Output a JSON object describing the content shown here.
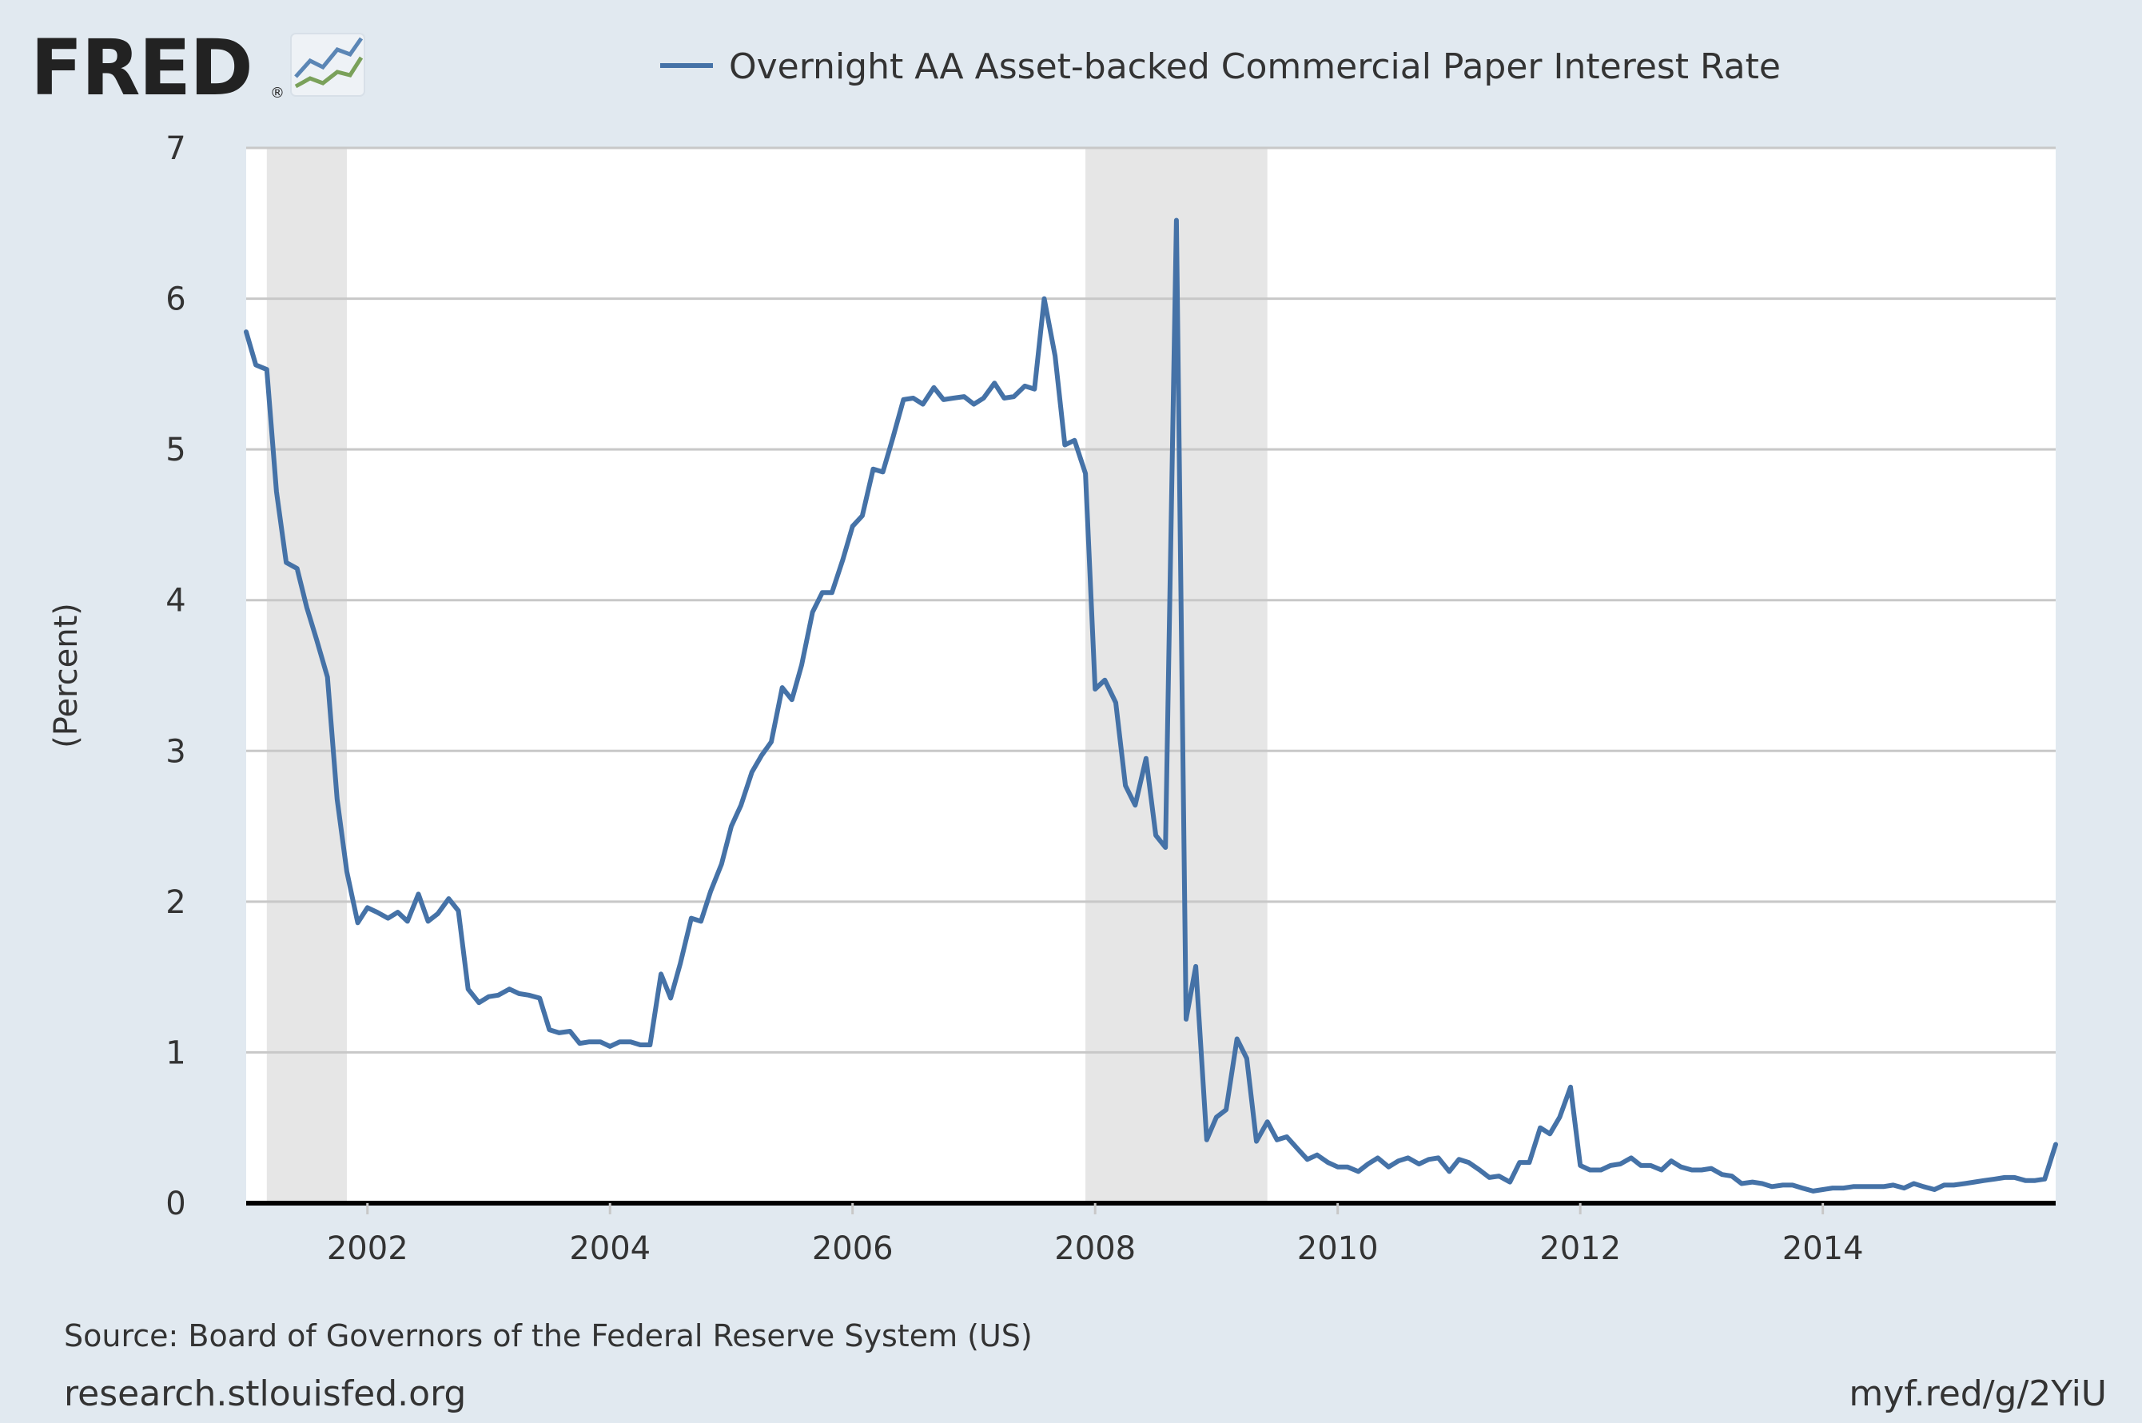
{
  "header": {
    "logo_text": "FRED",
    "registered_mark": "®"
  },
  "legend": {
    "label": "Overnight AA Asset-backed Commercial Paper Interest Rate"
  },
  "footer": {
    "source": "Source: Board of Governors of the Federal Reserve System (US)",
    "site": "research.stlouisfed.org",
    "short_url": "myf.red/g/2YiU"
  },
  "colors": {
    "page_background": "#e1e9f0",
    "plot_background": "#ffffff",
    "series_line": "#4572a7",
    "recession_shade": "#e6e6e6",
    "gridline": "#c8c8c8",
    "axis_line": "#000000",
    "text": "#333333"
  },
  "chart_data": {
    "type": "line",
    "title": "",
    "xlabel": "",
    "ylabel": "(Percent)",
    "xlim": [
      2001.0,
      2015.92
    ],
    "ylim": [
      0,
      7
    ],
    "yticks": [
      0,
      1,
      2,
      3,
      4,
      5,
      6,
      7
    ],
    "xticks": [
      2002,
      2004,
      2006,
      2008,
      2010,
      2012,
      2014
    ],
    "grid": true,
    "legend_position": "top",
    "recessions": [
      [
        2001.17,
        2001.83
      ],
      [
        2007.92,
        2009.42
      ]
    ],
    "series": [
      {
        "name": "Overnight AA Asset-backed Commercial Paper Interest Rate",
        "x": [
          2001.0,
          2001.08,
          2001.17,
          2001.25,
          2001.33,
          2001.42,
          2001.5,
          2001.58,
          2001.67,
          2001.75,
          2001.83,
          2001.92,
          2002.0,
          2002.08,
          2002.17,
          2002.25,
          2002.33,
          2002.42,
          2002.5,
          2002.58,
          2002.67,
          2002.75,
          2002.83,
          2002.92,
          2003.0,
          2003.08,
          2003.17,
          2003.25,
          2003.33,
          2003.42,
          2003.5,
          2003.58,
          2003.67,
          2003.75,
          2003.83,
          2003.92,
          2004.0,
          2004.08,
          2004.17,
          2004.25,
          2004.33,
          2004.42,
          2004.5,
          2004.58,
          2004.67,
          2004.75,
          2004.83,
          2004.92,
          2005.0,
          2005.08,
          2005.17,
          2005.25,
          2005.33,
          2005.42,
          2005.5,
          2005.58,
          2005.67,
          2005.75,
          2005.83,
          2005.92,
          2006.0,
          2006.08,
          2006.17,
          2006.25,
          2006.33,
          2006.42,
          2006.5,
          2006.58,
          2006.67,
          2006.75,
          2006.83,
          2006.92,
          2007.0,
          2007.08,
          2007.17,
          2007.25,
          2007.33,
          2007.42,
          2007.5,
          2007.58,
          2007.67,
          2007.75,
          2007.83,
          2007.92,
          2008.0,
          2008.08,
          2008.17,
          2008.25,
          2008.33,
          2008.42,
          2008.5,
          2008.58,
          2008.67,
          2008.75,
          2008.83,
          2008.92,
          2009.0,
          2009.08,
          2009.17,
          2009.25,
          2009.33,
          2009.42,
          2009.5,
          2009.58,
          2009.67,
          2009.75,
          2009.83,
          2009.92,
          2010.0,
          2010.08,
          2010.17,
          2010.25,
          2010.33,
          2010.42,
          2010.5,
          2010.58,
          2010.67,
          2010.75,
          2010.83,
          2010.92,
          2011.0,
          2011.08,
          2011.17,
          2011.25,
          2011.33,
          2011.42,
          2011.5,
          2011.58,
          2011.67,
          2011.75,
          2011.83,
          2011.92,
          2012.0,
          2012.08,
          2012.17,
          2012.25,
          2012.33,
          2012.42,
          2012.5,
          2012.58,
          2012.67,
          2012.75,
          2012.83,
          2012.92,
          2013.0,
          2013.08,
          2013.17,
          2013.25,
          2013.33,
          2013.42,
          2013.5,
          2013.58,
          2013.67,
          2013.75,
          2013.83,
          2013.92,
          2014.0,
          2014.08,
          2014.17,
          2014.25,
          2014.33,
          2014.42,
          2014.5,
          2014.58,
          2014.67,
          2014.75,
          2014.83,
          2014.92,
          2015.0,
          2015.08,
          2015.17,
          2015.25,
          2015.33,
          2015.42,
          2015.5,
          2015.58,
          2015.67,
          2015.75,
          2015.83,
          2015.92
        ],
        "y": [
          5.78,
          5.56,
          5.53,
          4.72,
          4.25,
          4.21,
          3.95,
          3.74,
          3.49,
          2.68,
          2.2,
          1.86,
          1.96,
          1.93,
          1.89,
          1.93,
          1.87,
          2.05,
          1.87,
          1.92,
          2.02,
          1.94,
          1.42,
          1.33,
          1.37,
          1.38,
          1.42,
          1.39,
          1.38,
          1.36,
          1.15,
          1.13,
          1.14,
          1.06,
          1.07,
          1.07,
          1.04,
          1.07,
          1.07,
          1.05,
          1.05,
          1.52,
          1.36,
          1.59,
          1.89,
          1.87,
          2.07,
          2.25,
          2.5,
          2.64,
          2.86,
          2.97,
          3.06,
          3.42,
          3.34,
          3.57,
          3.92,
          4.05,
          4.05,
          4.27,
          4.49,
          4.56,
          4.87,
          4.85,
          5.07,
          5.33,
          5.34,
          5.3,
          5.41,
          5.33,
          5.34,
          5.35,
          5.3,
          5.34,
          5.44,
          5.34,
          5.35,
          5.42,
          5.4,
          6.0,
          5.62,
          5.03,
          5.06,
          4.84,
          3.41,
          3.47,
          3.32,
          2.77,
          2.64,
          2.95,
          2.44,
          2.36,
          6.52,
          1.22,
          1.57,
          0.42,
          0.57,
          0.62,
          1.09,
          0.96,
          0.41,
          0.54,
          0.42,
          0.44,
          0.36,
          0.29,
          0.32,
          0.27,
          0.24,
          0.24,
          0.21,
          0.26,
          0.3,
          0.24,
          0.28,
          0.3,
          0.26,
          0.29,
          0.3,
          0.21,
          0.29,
          0.27,
          0.22,
          0.17,
          0.18,
          0.14,
          0.27,
          0.27,
          0.5,
          0.46,
          0.57,
          0.77,
          0.25,
          0.22,
          0.22,
          0.25,
          0.26,
          0.3,
          0.25,
          0.25,
          0.22,
          0.28,
          0.24,
          0.22,
          0.22,
          0.23,
          0.19,
          0.18,
          0.13,
          0.14,
          0.13,
          0.11,
          0.12,
          0.12,
          0.1,
          0.08,
          0.09,
          0.1,
          0.1,
          0.11,
          0.11,
          0.11,
          0.11,
          0.12,
          0.1,
          0.13,
          0.11,
          0.09,
          0.12,
          0.12,
          0.13,
          0.14,
          0.15,
          0.16,
          0.17,
          0.17,
          0.15,
          0.15,
          0.16,
          0.39
        ]
      }
    ]
  }
}
